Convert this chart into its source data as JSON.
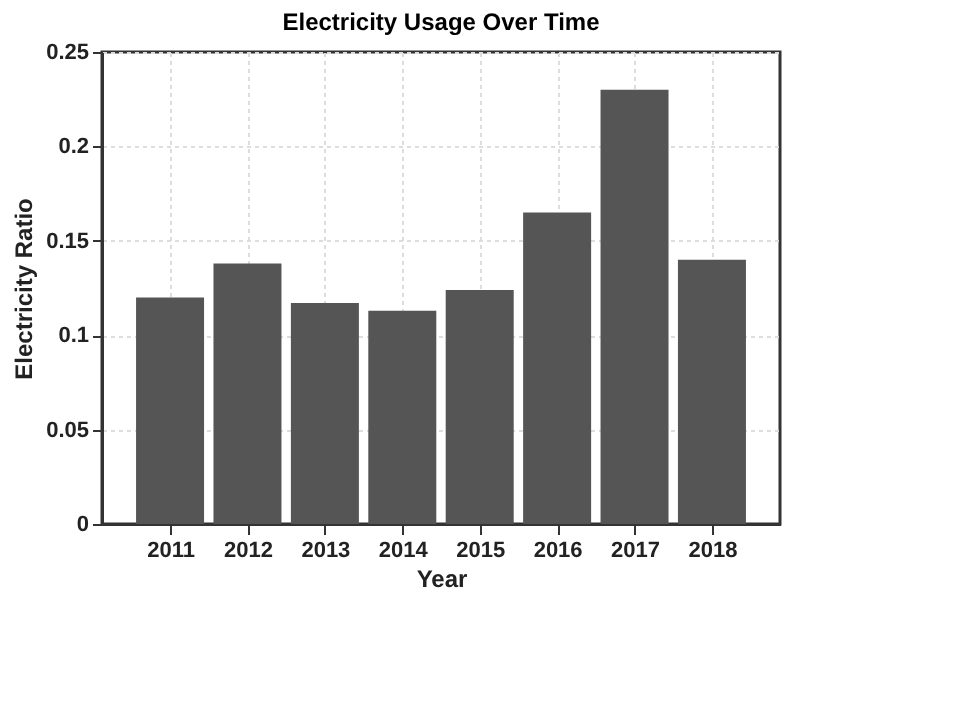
{
  "chart_data": {
    "type": "bar",
    "title": "Electricity Usage Over Time",
    "xlabel": "Year",
    "ylabel": "Electricity Ratio",
    "categories": [
      "2011",
      "2012",
      "2013",
      "2014",
      "2015",
      "2016",
      "2017",
      "2018"
    ],
    "values": [
      0.12,
      0.138,
      0.117,
      0.113,
      0.124,
      0.165,
      0.23,
      0.14
    ],
    "color": "#555555",
    "ylim": [
      0,
      0.25
    ],
    "yticks": [
      0,
      0.05,
      0.1,
      0.15,
      0.2,
      0.25
    ],
    "grid": true
  }
}
